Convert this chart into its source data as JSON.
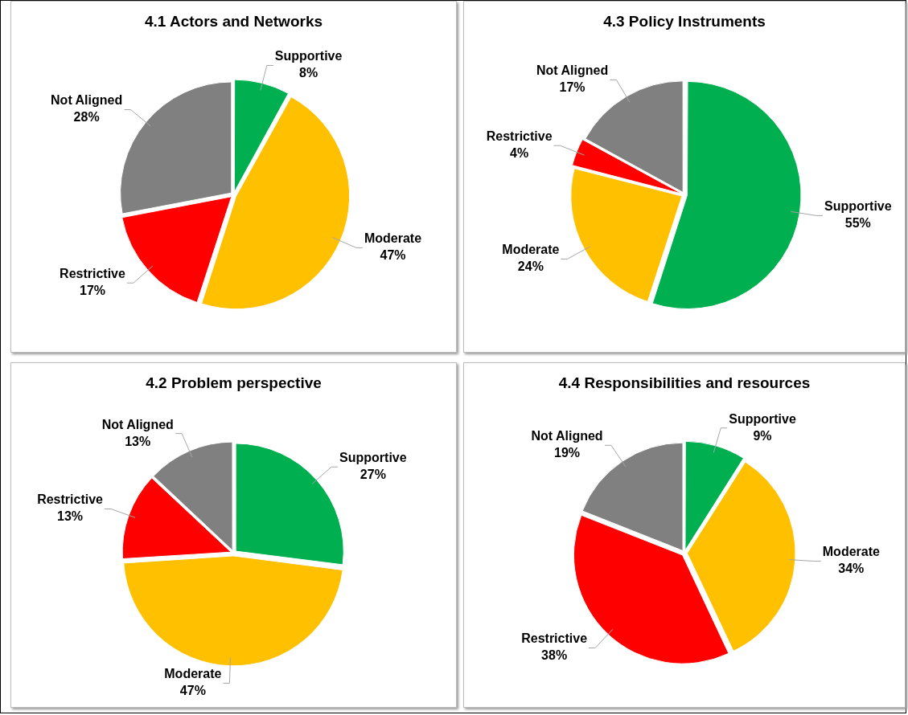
{
  "chart_data": [
    {
      "type": "pie",
      "title": "4.1 Actors and Networks",
      "categories": [
        "Supportive",
        "Moderate",
        "Restrictive",
        "Not Aligned"
      ],
      "values": [
        8,
        47,
        17,
        28
      ],
      "colors": [
        "#00b050",
        "#ffc000",
        "#ff0000",
        "#808080"
      ],
      "value_labels": [
        "8%",
        "47%",
        "17%",
        "28%"
      ]
    },
    {
      "type": "pie",
      "title": "4.3 Policy Instruments",
      "categories": [
        "Supportive",
        "Moderate",
        "Restrictive",
        "Not Aligned"
      ],
      "values": [
        55,
        24,
        4,
        17
      ],
      "colors": [
        "#00b050",
        "#ffc000",
        "#ff0000",
        "#808080"
      ],
      "value_labels": [
        "55%",
        "24%",
        "4%",
        "17%"
      ]
    },
    {
      "type": "pie",
      "title": "4.2 Problem perspective",
      "categories": [
        "Supportive",
        "Moderate",
        "Restrictive",
        "Not Aligned"
      ],
      "values": [
        27,
        47,
        13,
        13
      ],
      "colors": [
        "#00b050",
        "#ffc000",
        "#ff0000",
        "#808080"
      ],
      "value_labels": [
        "27%",
        "47%",
        "13%",
        "13%"
      ]
    },
    {
      "type": "pie",
      "title": "4.4 Responsibilities and resources",
      "categories": [
        "Supportive",
        "Moderate",
        "Restrictive",
        "Not Aligned"
      ],
      "values": [
        9,
        34,
        38,
        19
      ],
      "colors": [
        "#00b050",
        "#ffc000",
        "#ff0000",
        "#808080"
      ],
      "value_labels": [
        "9%",
        "34%",
        "38%",
        "19%"
      ]
    }
  ]
}
